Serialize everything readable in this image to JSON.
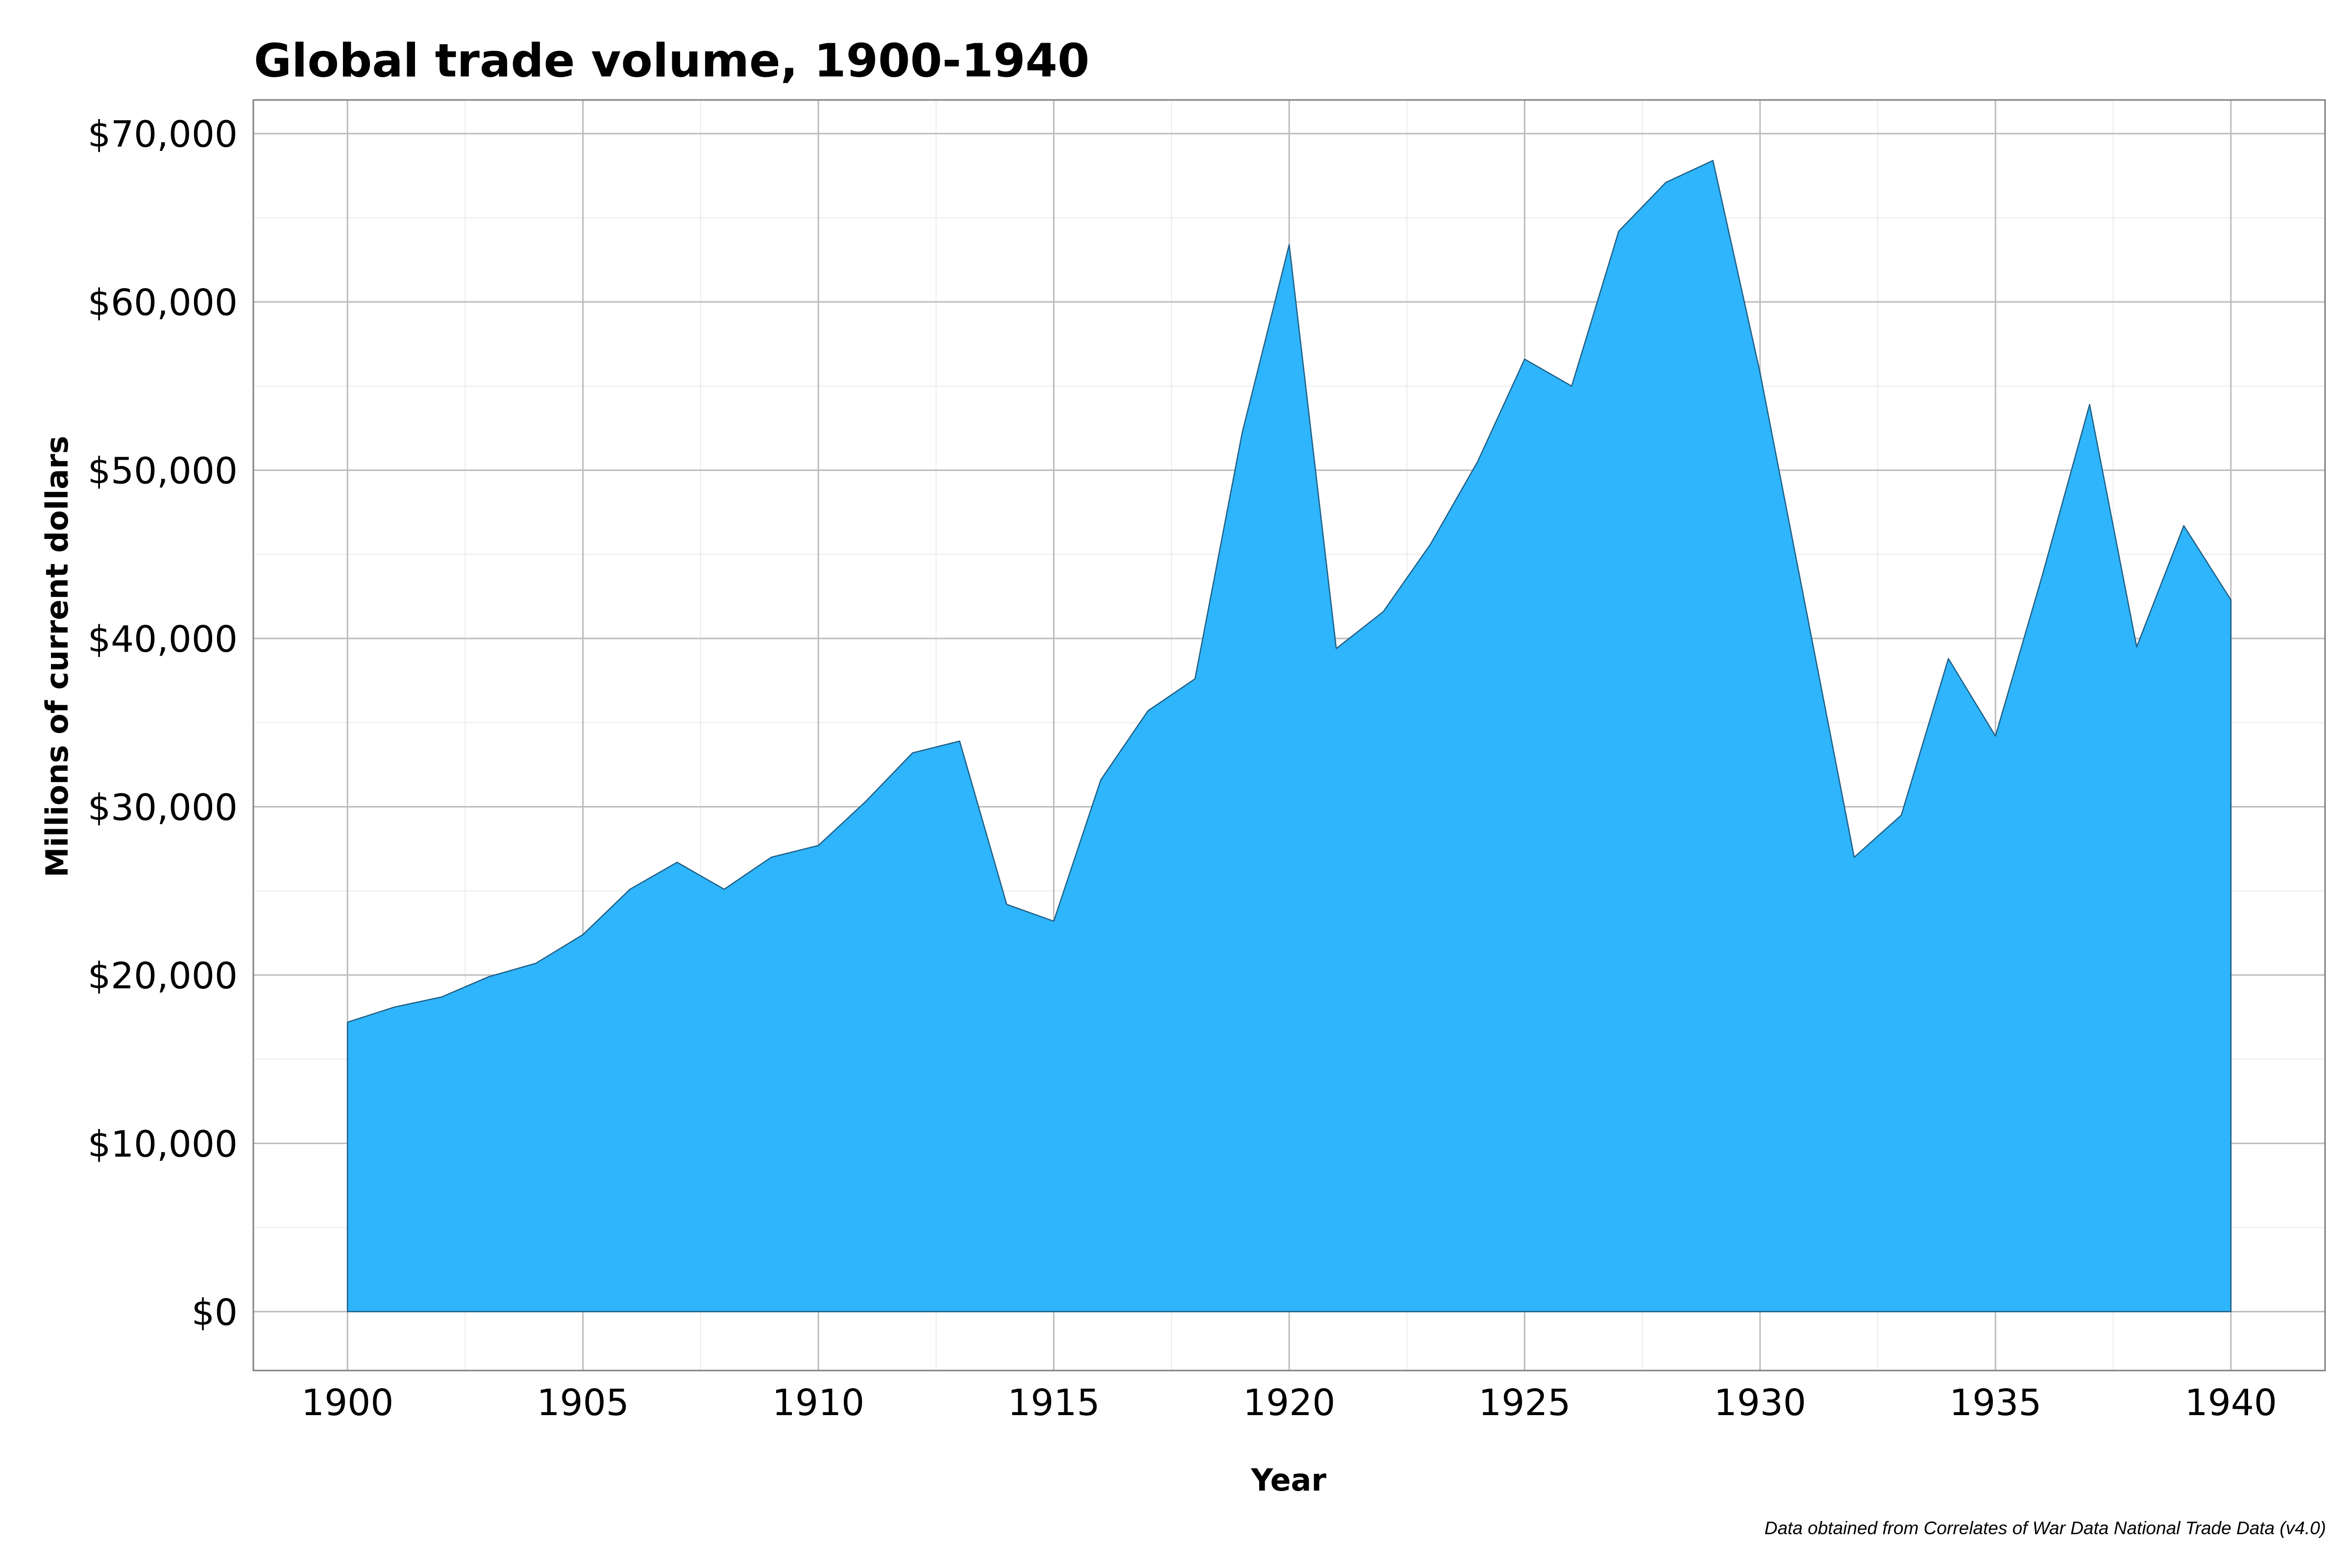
{
  "chart_data": {
    "type": "area",
    "title": "Global trade volume, 1900-1940",
    "xlabel": "Year",
    "ylabel": "Millions of current dollars",
    "caption": "Data obtained from Correlates of War Data National Trade Data (v4.0)",
    "xlim": [
      1898,
      1942
    ],
    "ylim": [
      -3500,
      72000
    ],
    "x_ticks": [
      1900,
      1905,
      1910,
      1915,
      1920,
      1925,
      1930,
      1935,
      1940
    ],
    "y_ticks": [
      0,
      10000,
      20000,
      30000,
      40000,
      50000,
      60000,
      70000
    ],
    "x_tick_labels": [
      "1900",
      "1905",
      "1910",
      "1915",
      "1920",
      "1925",
      "1930",
      "1935",
      "1940"
    ],
    "y_tick_labels": [
      "$0",
      "$10,000",
      "$20,000",
      "$30,000",
      "$40,000",
      "$50,000",
      "$60,000",
      "$70,000"
    ],
    "grid": true,
    "legend": "none",
    "fill_color": "#2fb5fb",
    "line_color": "#1e5f86",
    "series": [
      {
        "x": [
          1900,
          1901,
          1902,
          1903,
          1904,
          1905,
          1906,
          1907,
          1908,
          1909,
          1910,
          1911,
          1912,
          1913,
          1914,
          1915,
          1916,
          1917,
          1918,
          1919,
          1920,
          1921,
          1922,
          1923,
          1924,
          1925,
          1926,
          1927,
          1928,
          1929,
          1930,
          1931,
          1932,
          1933,
          1934,
          1935,
          1936,
          1937,
          1938,
          1939,
          1940
        ],
        "values": [
          17200,
          18100,
          18700,
          19900,
          20700,
          22400,
          25100,
          26700,
          25100,
          27000,
          27700,
          30300,
          33200,
          33900,
          24200,
          23200,
          31600,
          35700,
          37600,
          52200,
          63400,
          39400,
          41600,
          45600,
          50500,
          56600,
          55000,
          64200,
          67100,
          68400,
          55800,
          41400,
          27000,
          29500,
          38800,
          34200,
          43800,
          53900,
          39500,
          46700,
          42300
        ]
      }
    ]
  }
}
